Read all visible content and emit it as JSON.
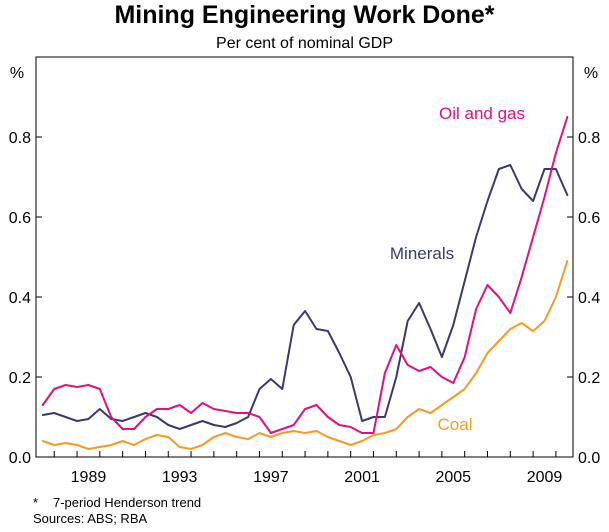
{
  "chart_data": {
    "type": "line",
    "title": "Mining Engineering Work Done*",
    "subtitle": "Per cent of nominal GDP",
    "ylabel_left": "%",
    "ylabel_right": "%",
    "ylim": [
      0,
      1.0
    ],
    "xlim": [
      1986.2,
      2009.75
    ],
    "y_ticks": [
      0.0,
      0.2,
      0.4,
      0.6,
      0.8
    ],
    "y_tick_labels": [
      "0.0",
      "0.2",
      "0.4",
      "0.6",
      "0.8"
    ],
    "x_ticks": [
      1989,
      1993,
      1997,
      2001,
      2005,
      2009
    ],
    "x_tick_labels": [
      "1989",
      "1993",
      "1997",
      "2001",
      "2005",
      "2009"
    ],
    "grid": false,
    "series": [
      {
        "name": "Minerals",
        "color": "#3a3a6e",
        "x": [
          1986.5,
          1987.0,
          1987.5,
          1988.0,
          1988.5,
          1989.0,
          1989.5,
          1990.0,
          1990.5,
          1991.0,
          1991.5,
          1992.0,
          1992.5,
          1993.0,
          1993.5,
          1994.0,
          1994.5,
          1995.0,
          1995.5,
          1996.0,
          1996.5,
          1997.0,
          1997.5,
          1998.0,
          1998.5,
          1999.0,
          1999.5,
          2000.0,
          2000.5,
          2001.0,
          2001.5,
          2002.0,
          2002.5,
          2003.0,
          2003.5,
          2004.0,
          2004.5,
          2005.0,
          2005.5,
          2006.0,
          2006.5,
          2007.0,
          2007.5,
          2008.0,
          2008.5,
          2009.0,
          2009.5
        ],
        "values": [
          0.105,
          0.11,
          0.1,
          0.09,
          0.095,
          0.12,
          0.095,
          0.09,
          0.1,
          0.11,
          0.1,
          0.08,
          0.07,
          0.08,
          0.09,
          0.08,
          0.075,
          0.085,
          0.1,
          0.17,
          0.195,
          0.17,
          0.33,
          0.365,
          0.32,
          0.315,
          0.26,
          0.2,
          0.09,
          0.1,
          0.1,
          0.2,
          0.34,
          0.385,
          0.32,
          0.25,
          0.33,
          0.44,
          0.55,
          0.64,
          0.72,
          0.73,
          0.67,
          0.64,
          0.72,
          0.72,
          0.655
        ]
      },
      {
        "name": "Oil and gas",
        "color": "#e0107e",
        "x": [
          1986.5,
          1987.0,
          1987.5,
          1988.0,
          1988.5,
          1989.0,
          1989.5,
          1990.0,
          1990.5,
          1991.0,
          1991.5,
          1992.0,
          1992.5,
          1993.0,
          1993.5,
          1994.0,
          1994.5,
          1995.0,
          1995.5,
          1996.0,
          1996.5,
          1997.0,
          1997.5,
          1998.0,
          1998.5,
          1999.0,
          1999.5,
          2000.0,
          2000.5,
          2001.0,
          2001.5,
          2002.0,
          2002.5,
          2003.0,
          2003.5,
          2004.0,
          2004.5,
          2005.0,
          2005.5,
          2006.0,
          2006.5,
          2007.0,
          2007.5,
          2008.0,
          2008.5,
          2009.0,
          2009.5
        ],
        "values": [
          0.13,
          0.17,
          0.18,
          0.175,
          0.18,
          0.17,
          0.1,
          0.07,
          0.07,
          0.1,
          0.12,
          0.12,
          0.13,
          0.11,
          0.135,
          0.12,
          0.115,
          0.11,
          0.11,
          0.1,
          0.06,
          0.07,
          0.08,
          0.12,
          0.13,
          0.1,
          0.08,
          0.075,
          0.06,
          0.06,
          0.21,
          0.28,
          0.23,
          0.215,
          0.225,
          0.2,
          0.185,
          0.25,
          0.37,
          0.43,
          0.4,
          0.36,
          0.45,
          0.55,
          0.65,
          0.76,
          0.85
        ]
      },
      {
        "name": "Coal",
        "color": "#f39b24",
        "x": [
          1986.5,
          1987.0,
          1987.5,
          1988.0,
          1988.5,
          1989.0,
          1989.5,
          1990.0,
          1990.5,
          1991.0,
          1991.5,
          1992.0,
          1992.5,
          1993.0,
          1993.5,
          1994.0,
          1994.5,
          1995.0,
          1995.5,
          1996.0,
          1996.5,
          1997.0,
          1997.5,
          1998.0,
          1998.5,
          1999.0,
          1999.5,
          2000.0,
          2000.5,
          2001.0,
          2001.5,
          2002.0,
          2002.5,
          2003.0,
          2003.5,
          2004.0,
          2004.5,
          2005.0,
          2005.5,
          2006.0,
          2006.5,
          2007.0,
          2007.5,
          2008.0,
          2008.5,
          2009.0,
          2009.5
        ],
        "values": [
          0.04,
          0.03,
          0.035,
          0.03,
          0.02,
          0.025,
          0.03,
          0.04,
          0.03,
          0.045,
          0.055,
          0.05,
          0.025,
          0.02,
          0.03,
          0.05,
          0.06,
          0.05,
          0.045,
          0.06,
          0.05,
          0.06,
          0.065,
          0.06,
          0.065,
          0.05,
          0.04,
          0.03,
          0.04,
          0.055,
          0.06,
          0.07,
          0.1,
          0.12,
          0.11,
          0.13,
          0.15,
          0.17,
          0.21,
          0.26,
          0.29,
          0.32,
          0.335,
          0.315,
          0.34,
          0.4,
          0.49
        ]
      }
    ],
    "annotations": [
      "Oil and gas",
      "Minerals",
      "Coal"
    ]
  },
  "footnotes": {
    "star": "*",
    "trend_note": "7-period Henderson trend",
    "sources": "Sources: ABS; RBA"
  }
}
